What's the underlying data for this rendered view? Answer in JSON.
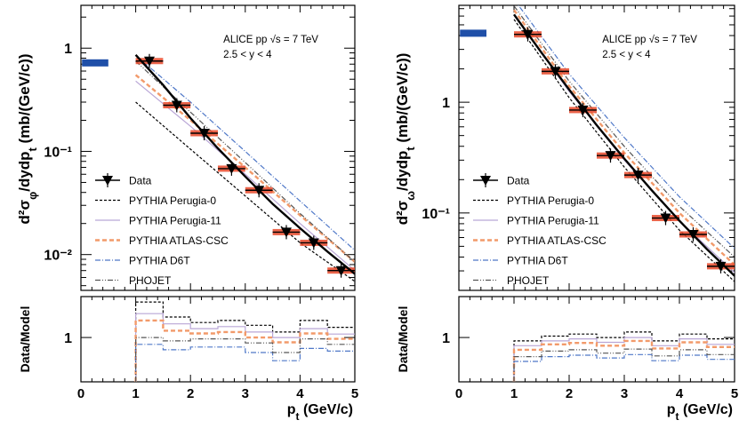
{
  "chart_data": [
    {
      "type": "line",
      "panel": "phi",
      "ylabel": "d²σφ/dydpt (mb/(GeV/c))",
      "xlabel": "pt (GeV/c)",
      "yscale": "log",
      "xlim": [
        0,
        5
      ],
      "ylim": [
        0.0045,
        2.6
      ],
      "x_ticks": [
        "0",
        "1",
        "2",
        "3",
        "4",
        "5"
      ],
      "y_ticks": [
        {
          "value": 1,
          "label": "1"
        },
        {
          "value": 0.1,
          "label": "10⁻¹"
        },
        {
          "value": 0.01,
          "label": "10⁻²"
        }
      ],
      "annotation": [
        "ALICE pp √s = 7 TeV",
        "2.5 < y < 4"
      ],
      "integrated_value": 0.72,
      "data": {
        "name": "Data",
        "points": [
          {
            "x": 1.25,
            "y": 0.75,
            "xerr": 0.25
          },
          {
            "x": 1.75,
            "y": 0.28,
            "xerr": 0.25
          },
          {
            "x": 2.25,
            "y": 0.15,
            "xerr": 0.25
          },
          {
            "x": 2.75,
            "y": 0.068,
            "xerr": 0.25
          },
          {
            "x": 3.25,
            "y": 0.042,
            "xerr": 0.25
          },
          {
            "x": 3.75,
            "y": 0.0165,
            "xerr": 0.25
          },
          {
            "x": 4.25,
            "y": 0.013,
            "xerr": 0.25
          },
          {
            "x": 4.75,
            "y": 0.007,
            "xerr": 0.25
          }
        ]
      },
      "fit": {
        "x": [
          1.0,
          1.5,
          2.0,
          2.5,
          3.0,
          3.5,
          4.0,
          4.5,
          5.0
        ],
        "y": [
          0.86,
          0.44,
          0.21,
          0.107,
          0.057,
          0.031,
          0.018,
          0.0107,
          0.0065
        ]
      },
      "series": [
        {
          "name": "PYTHIA Perugia-0",
          "x": [
            1.0,
            2.0,
            3.0,
            4.0,
            5.0
          ],
          "y": [
            0.3,
            0.105,
            0.037,
            0.013,
            0.0055
          ]
        },
        {
          "name": "PYTHIA Perugia-11",
          "x": [
            1.0,
            2.0,
            3.0,
            4.0,
            5.0
          ],
          "y": [
            0.48,
            0.175,
            0.06,
            0.02,
            0.007
          ]
        },
        {
          "name": "PYTHIA ATLAS-CSC",
          "x": [
            1.0,
            2.0,
            3.0,
            4.0,
            5.0
          ],
          "y": [
            0.55,
            0.2,
            0.07,
            0.024,
            0.0085
          ]
        },
        {
          "name": "PYTHIA D6T",
          "x": [
            1.0,
            2.0,
            3.0,
            4.0,
            5.0
          ],
          "y": [
            0.85,
            0.3,
            0.1,
            0.033,
            0.011
          ]
        },
        {
          "name": "PHOJET",
          "x": [
            1.0,
            2.0,
            3.0,
            4.0,
            5.0
          ],
          "y": [
            0.75,
            0.24,
            0.078,
            0.025,
            0.0085
          ]
        }
      ],
      "ratio": {
        "ylabel": "Data/Model",
        "ytick": "1",
        "ylim": [
          0.35,
          1.6
        ],
        "bins": [
          1.0,
          1.5,
          2.0,
          2.5,
          3.0,
          3.5,
          4.0,
          4.5,
          5.0
        ],
        "series": [
          {
            "name": "PYTHIA Perugia-0",
            "values": [
              1.52,
              1.3,
              1.22,
              1.25,
              1.18,
              1.08,
              1.25,
              1.15
            ]
          },
          {
            "name": "PYTHIA Perugia-11",
            "values": [
              1.35,
              1.2,
              1.13,
              1.16,
              1.08,
              1.0,
              1.13,
              1.05
            ]
          },
          {
            "name": "PYTHIA ATLAS-CSC",
            "values": [
              1.25,
              1.1,
              1.06,
              1.08,
              1.0,
              0.93,
              1.06,
              0.98
            ]
          },
          {
            "name": "PYTHIA D6T",
            "values": [
              0.9,
              0.82,
              0.86,
              0.86,
              0.78,
              0.66,
              0.84,
              0.8
            ]
          },
          {
            "name": "PHOJET",
            "values": [
              1.0,
              0.95,
              0.98,
              0.98,
              0.92,
              0.78,
              0.98,
              0.9
            ]
          }
        ]
      }
    },
    {
      "type": "line",
      "panel": "omega",
      "ylabel": "d²σω/dydpt (mb/(GeV/c))",
      "xlabel": "pt (GeV/c)",
      "yscale": "log",
      "xlim": [
        0,
        5
      ],
      "ylim": [
        0.02,
        7.5
      ],
      "x_ticks": [
        "0",
        "1",
        "2",
        "3",
        "4",
        "5"
      ],
      "y_ticks": [
        {
          "value": 1,
          "label": "1"
        },
        {
          "value": 0.1,
          "label": "10⁻¹"
        }
      ],
      "annotation": [
        "ALICE pp √s = 7 TeV",
        "2.5 < y < 4"
      ],
      "integrated_value": 4.2,
      "data": {
        "name": "Data",
        "points": [
          {
            "x": 1.25,
            "y": 4.1,
            "xerr": 0.25
          },
          {
            "x": 1.75,
            "y": 1.9,
            "xerr": 0.25
          },
          {
            "x": 2.25,
            "y": 0.85,
            "xerr": 0.25
          },
          {
            "x": 2.75,
            "y": 0.33,
            "xerr": 0.25
          },
          {
            "x": 3.25,
            "y": 0.22,
            "xerr": 0.25
          },
          {
            "x": 3.75,
            "y": 0.09,
            "xerr": 0.25
          },
          {
            "x": 4.25,
            "y": 0.064,
            "xerr": 0.25
          },
          {
            "x": 4.75,
            "y": 0.033,
            "xerr": 0.25
          }
        ]
      },
      "fit": {
        "x": [
          1.0,
          1.5,
          2.0,
          2.5,
          3.0,
          3.5,
          4.0,
          4.5,
          5.0
        ],
        "y": [
          6.2,
          2.8,
          1.3,
          0.62,
          0.31,
          0.16,
          0.085,
          0.047,
          0.027
        ]
      },
      "series": [
        {
          "name": "PYTHIA Perugia-0",
          "x": [
            1.0,
            2.0,
            3.0,
            4.0,
            5.0
          ],
          "y": [
            5.6,
            1.1,
            0.26,
            0.07,
            0.024
          ]
        },
        {
          "name": "PYTHIA Perugia-11",
          "x": [
            1.0,
            2.0,
            3.0,
            4.0,
            5.0
          ],
          "y": [
            6.1,
            1.25,
            0.3,
            0.085,
            0.029
          ]
        },
        {
          "name": "PYTHIA ATLAS-CSC",
          "x": [
            1.0,
            2.0,
            3.0,
            4.0,
            5.0
          ],
          "y": [
            6.8,
            1.4,
            0.35,
            0.1,
            0.034
          ]
        },
        {
          "name": "PYTHIA D6T",
          "x": [
            1.0,
            2.0,
            3.0,
            4.0,
            5.0
          ],
          "y": [
            8.5,
            1.8,
            0.48,
            0.14,
            0.048
          ]
        },
        {
          "name": "PHOJET",
          "x": [
            1.0,
            2.0,
            3.0,
            4.0,
            5.0
          ],
          "y": [
            7.4,
            1.55,
            0.4,
            0.115,
            0.04
          ]
        }
      ],
      "ratio": {
        "ylabel": "Data/Model",
        "ytick": "1",
        "ylim": [
          0.35,
          1.6
        ],
        "bins": [
          1.0,
          1.5,
          2.0,
          2.5,
          3.0,
          3.5,
          4.0,
          4.5,
          5.0
        ],
        "series": [
          {
            "name": "PYTHIA Perugia-0",
            "values": [
              0.95,
              1.02,
              1.05,
              1.0,
              1.08,
              0.95,
              1.05,
              0.98
            ]
          },
          {
            "name": "PYTHIA Perugia-11",
            "values": [
              0.88,
              0.95,
              0.98,
              0.93,
              1.0,
              0.88,
              0.98,
              0.9
            ]
          },
          {
            "name": "PYTHIA ATLAS-CSC",
            "values": [
              0.82,
              0.9,
              0.92,
              0.88,
              0.95,
              0.84,
              0.93,
              0.86
            ]
          },
          {
            "name": "PYTHIA D6T",
            "values": [
              0.65,
              0.72,
              0.74,
              0.7,
              0.75,
              0.66,
              0.74,
              0.68
            ]
          },
          {
            "name": "PHOJET",
            "values": [
              0.72,
              0.8,
              0.82,
              0.77,
              0.83,
              0.73,
              0.82,
              0.75
            ]
          }
        ]
      }
    }
  ],
  "legend": {
    "entries": [
      "Data",
      "PYTHIA Perugia-0",
      "PYTHIA Perugia-11",
      "PYTHIA ATLAS-CSC",
      "PYTHIA D6T",
      "PHOJET"
    ]
  },
  "styles": {
    "data_color": "#000000",
    "syst_color": "#e8492a",
    "integrated_color": "#1f4fa8",
    "series": [
      {
        "color": "#000000",
        "dash": "3,2",
        "width": 1.2
      },
      {
        "color": "#b9a6d6",
        "dash": "",
        "width": 1.2
      },
      {
        "color": "#f29a6a",
        "dash": "5,3",
        "width": 2.4
      },
      {
        "color": "#4f78c8",
        "dash": "6,2,1,2",
        "width": 1.2
      },
      {
        "color": "#555555",
        "dash": "6,2,1,2,1,2",
        "width": 1.2
      }
    ]
  }
}
